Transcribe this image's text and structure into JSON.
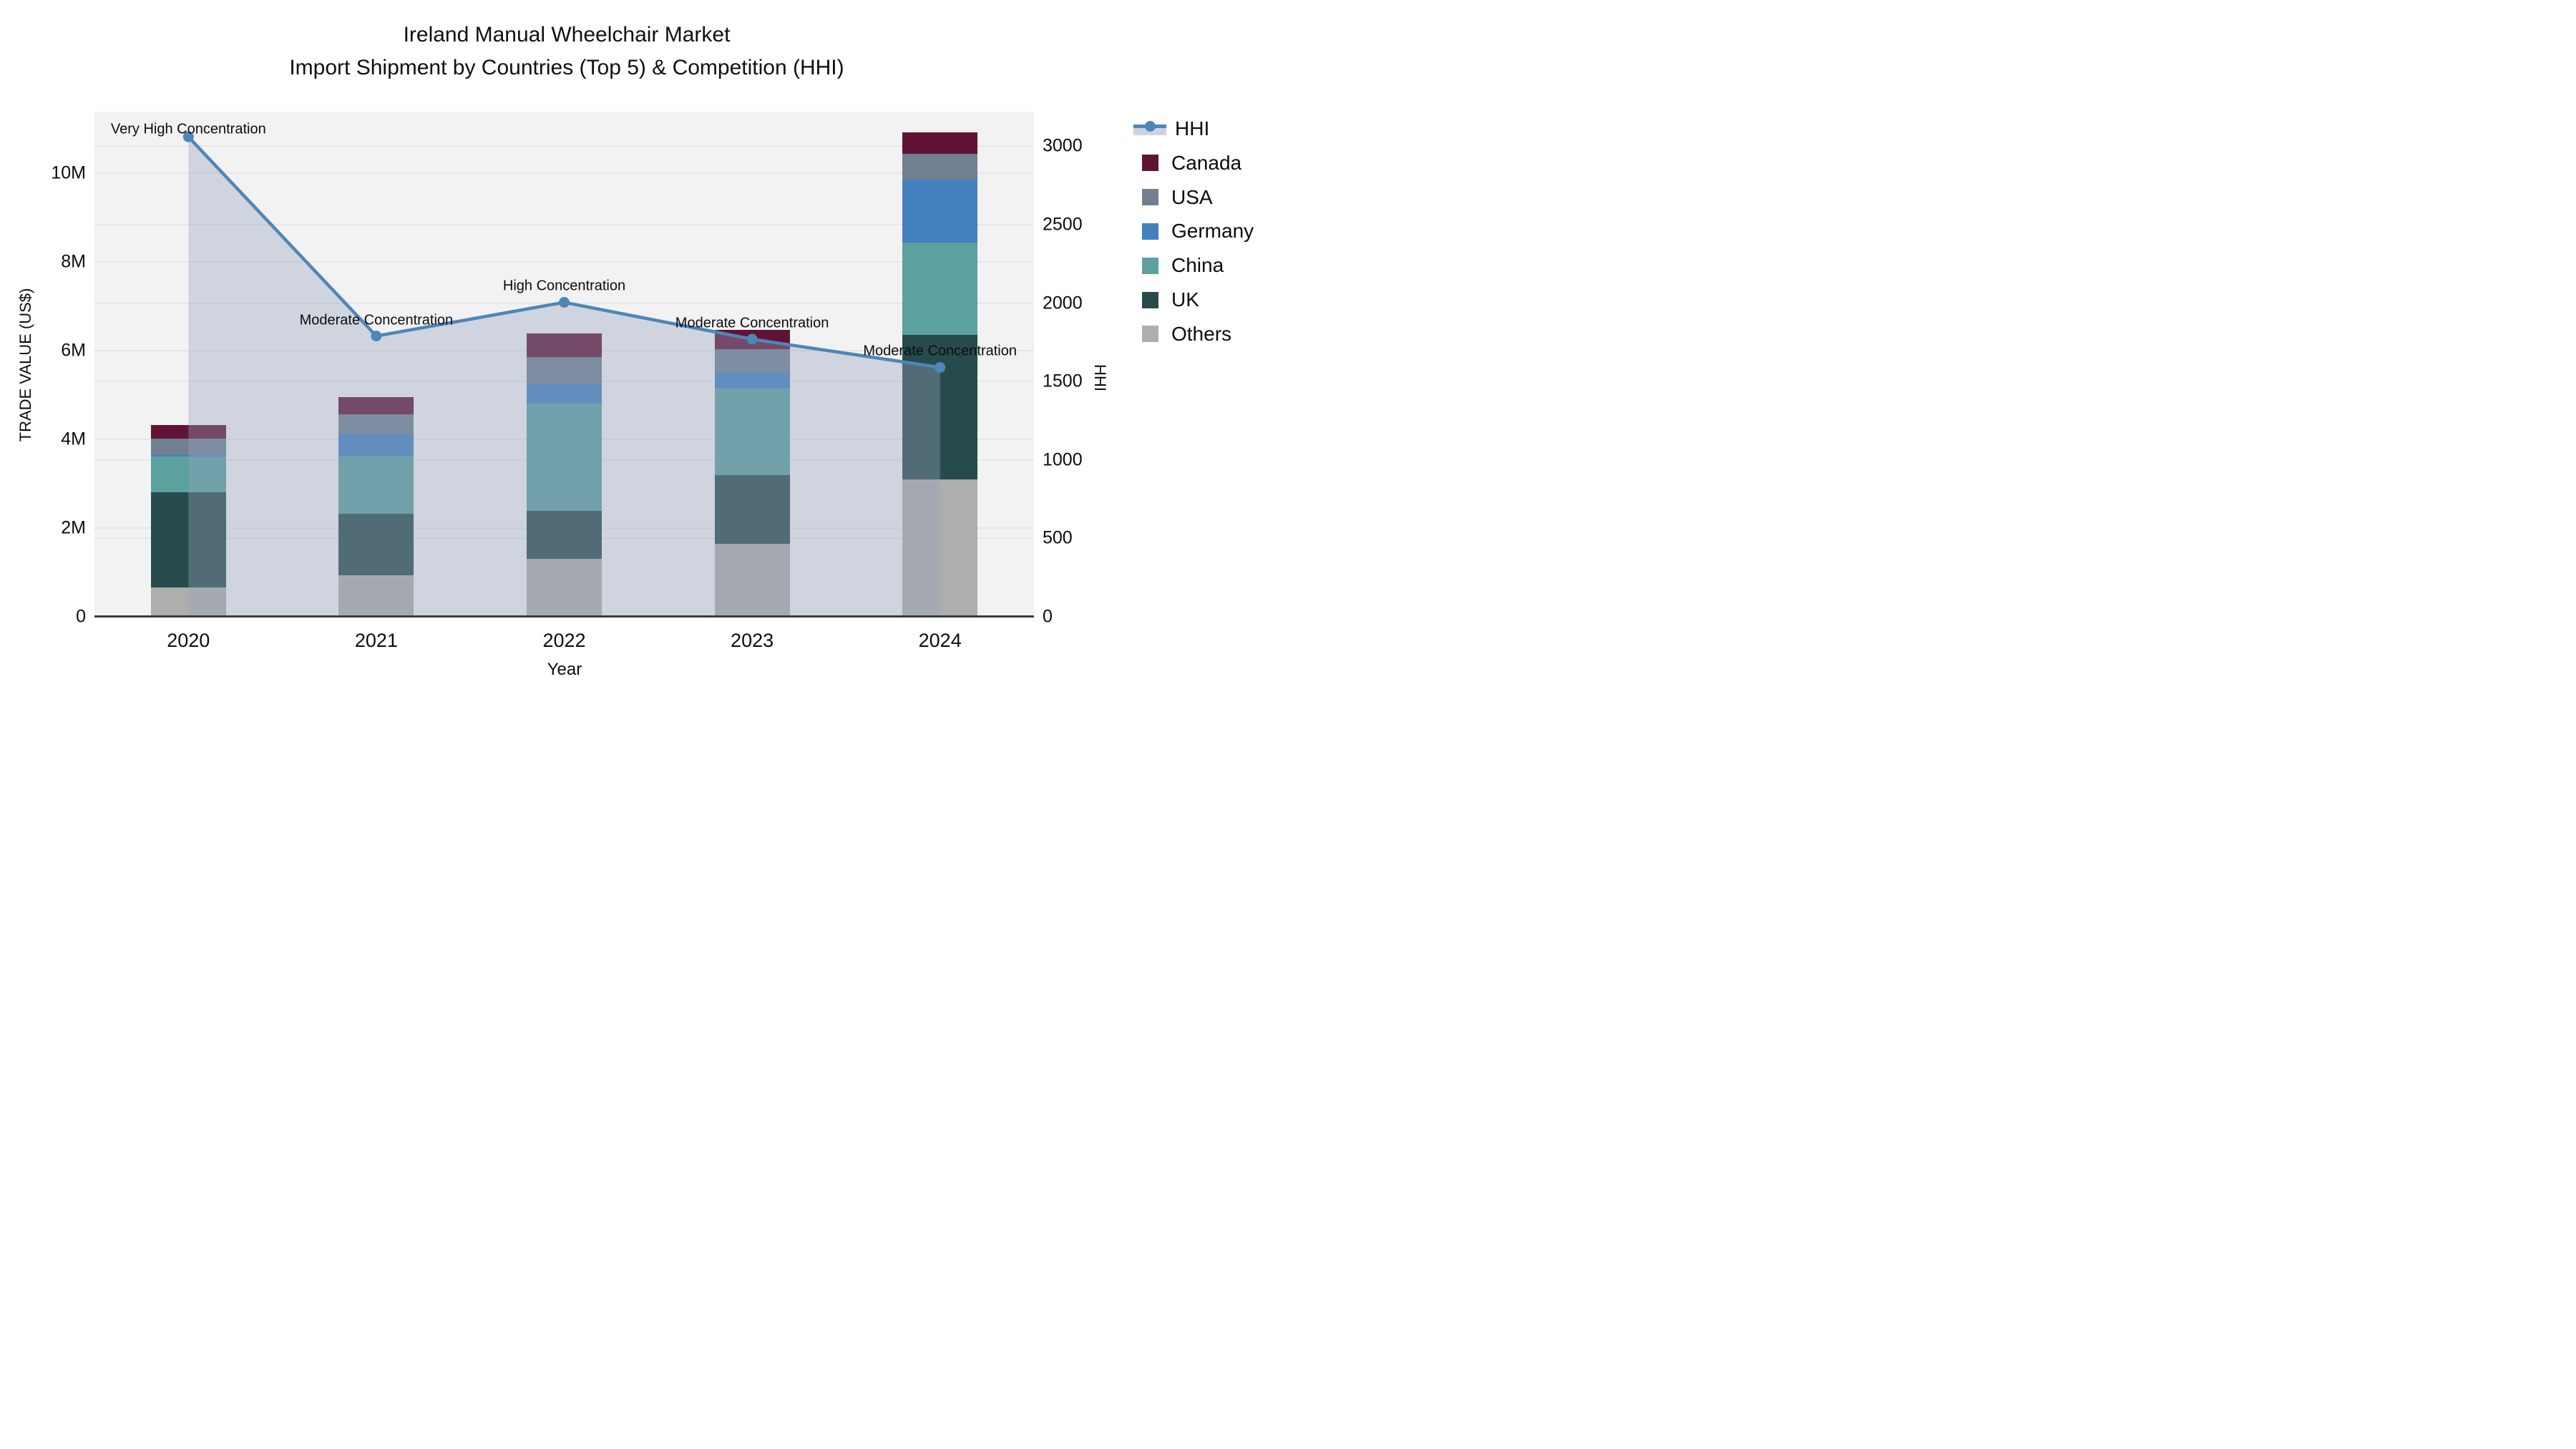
{
  "title": {
    "line1": "Ireland Manual Wheelchair Market",
    "line2": "Import Shipment by Countries (Top 5) & Competition (HHI)"
  },
  "axes": {
    "left": {
      "title": "TRADE VALUE (US$)",
      "tick_labels": [
        "0",
        "2M",
        "4M",
        "6M",
        "8M",
        "10M"
      ],
      "tick_values": [
        0,
        2,
        4,
        6,
        8,
        10
      ]
    },
    "right": {
      "title": "HHI",
      "tick_labels": [
        "0",
        "500",
        "1000",
        "1500",
        "2000",
        "2500",
        "3000"
      ],
      "tick_values": [
        0,
        500,
        1000,
        1500,
        2000,
        2500,
        3000
      ]
    },
    "x": {
      "title": "Year",
      "categories": [
        "2020",
        "2021",
        "2022",
        "2023",
        "2024"
      ]
    }
  },
  "legend": [
    {
      "label": "HHI",
      "type": "line",
      "color": "#4d86b8"
    },
    {
      "label": "Canada",
      "type": "swatch",
      "color": "#611335"
    },
    {
      "label": "USA",
      "type": "swatch",
      "color": "#708090"
    },
    {
      "label": "Germany",
      "type": "swatch",
      "color": "#4381bf"
    },
    {
      "label": "China",
      "type": "swatch",
      "color": "#5ca0a0"
    },
    {
      "label": "UK",
      "type": "swatch",
      "color": "#274b4c"
    },
    {
      "label": "Others",
      "type": "swatch",
      "color": "#aeaeac"
    }
  ],
  "colors": {
    "hhi_line": "#4d86b8",
    "hhi_fill": "rgba(150,163,188,0.38)",
    "plot_background": "#f2f2f3",
    "gridline": "#e5e6e9",
    "canada": "#611335",
    "usa": "#708090",
    "germany": "#4381bf",
    "china": "#5ca0a0",
    "uk": "#274b4c",
    "others": "#aeaeac"
  },
  "chart_data": {
    "type": "bar+line",
    "title": "Ireland Manual Wheelchair Market — Import Shipment by Countries (Top 5) & Competition (HHI)",
    "xlabel": "Year",
    "ylabel_left": "TRADE VALUE (US$)",
    "ylabel_right": "HHI",
    "unit_bars": "millions of US$",
    "categories": [
      "2020",
      "2021",
      "2022",
      "2023",
      "2024"
    ],
    "bar_mode": "stacked",
    "series": [
      {
        "name": "Others",
        "color": "#aeaeac",
        "values": [
          0.66,
          0.94,
          1.31,
          1.65,
          3.1
        ]
      },
      {
        "name": "UK",
        "color": "#274b4c",
        "values": [
          2.15,
          1.39,
          1.07,
          1.54,
          3.25
        ]
      },
      {
        "name": "China",
        "color": "#5ca0a0",
        "values": [
          0.81,
          1.3,
          2.42,
          1.95,
          2.09
        ]
      },
      {
        "name": "Germany",
        "color": "#4381bf",
        "values": [
          0.03,
          0.5,
          0.44,
          0.37,
          1.42
        ]
      },
      {
        "name": "USA",
        "color": "#708090",
        "values": [
          0.36,
          0.44,
          0.61,
          0.52,
          0.57
        ]
      },
      {
        "name": "Canada",
        "color": "#611335",
        "values": [
          0.31,
          0.38,
          0.53,
          0.43,
          0.49
        ]
      }
    ],
    "bar_totals": [
      4.32,
      4.95,
      6.38,
      6.46,
      10.92
    ],
    "line_series": {
      "name": "HHI",
      "color": "#4d86b8",
      "area_fill": true,
      "values": [
        3060,
        1790,
        2005,
        1770,
        1590
      ]
    },
    "annotations": [
      {
        "x": "2020",
        "text": "Very High Concentration"
      },
      {
        "x": "2021",
        "text": "Moderate Concentration"
      },
      {
        "x": "2022",
        "text": "High Concentration"
      },
      {
        "x": "2023",
        "text": "Moderate Concentration"
      },
      {
        "x": "2024",
        "text": "Moderate Concentration"
      }
    ],
    "ylim_left_millions": [
      0,
      11.4
    ],
    "ylim_right": [
      0,
      3220
    ],
    "grid": true,
    "legend_position": "right"
  }
}
